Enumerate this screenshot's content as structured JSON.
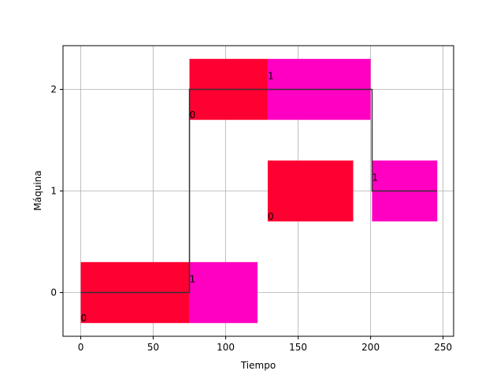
{
  "chart_data": {
    "type": "gantt",
    "xlabel": "Tiempo",
    "ylabel": "Máquina",
    "xlim": [
      -12.25,
      257.25
    ],
    "ylim": [
      -0.43,
      2.43
    ],
    "xticks": [
      "0",
      "50",
      "100",
      "150",
      "200",
      "250"
    ],
    "yticks": [
      "0",
      "1",
      "2"
    ],
    "grid": true,
    "bar_half_height": 0.3,
    "colors": {
      "job0": "#ff0033",
      "job1": "#ff00c3",
      "step_line": "#333333",
      "grid": "#b0b0b0"
    },
    "bars": [
      {
        "machine": 0,
        "start": 0,
        "end": 75,
        "job": 0,
        "label": "0"
      },
      {
        "machine": 0,
        "start": 75,
        "end": 122,
        "job": 1,
        "label": "1"
      },
      {
        "machine": 2,
        "start": 75,
        "end": 129,
        "job": 0,
        "label": "0"
      },
      {
        "machine": 2,
        "start": 129,
        "end": 200,
        "job": 1,
        "label": "1"
      },
      {
        "machine": 1,
        "start": 129,
        "end": 188,
        "job": 0,
        "label": "0"
      },
      {
        "machine": 1,
        "start": 201,
        "end": 246,
        "job": 1,
        "label": "1"
      }
    ],
    "step_line": [
      [
        0,
        0
      ],
      [
        75,
        0
      ],
      [
        75,
        2
      ],
      [
        201,
        2
      ],
      [
        201,
        1
      ],
      [
        246,
        1
      ]
    ]
  }
}
